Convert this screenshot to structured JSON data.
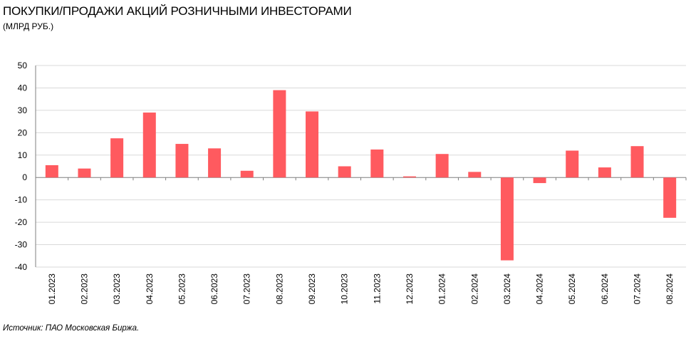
{
  "title": "ПОКУПКИ/ПРОДАЖИ АКЦИЙ РОЗНИЧНЫМИ ИНВЕСТОРАМИ",
  "subtitle": "(МЛРД РУБ.)",
  "source": "Источник: ПАО Московская Биржа.",
  "chart_data": {
    "type": "bar",
    "title": "ПОКУПКИ/ПРОДАЖИ АКЦИЙ РОЗНИЧНЫМИ ИНВЕСТОРАМИ",
    "subtitle": "(МЛРД РУБ.)",
    "xlabel": "",
    "ylabel": "",
    "ylim": [
      -40,
      50
    ],
    "yticks": [
      50,
      40,
      30,
      20,
      10,
      0,
      -10,
      -20,
      -30,
      -40
    ],
    "grid": true,
    "legend": "none",
    "bar_color": "#ff5a5f",
    "categories": [
      "01.2023",
      "02.2023",
      "03.2023",
      "04.2023",
      "05.2023",
      "06.2023",
      "07.2023",
      "08.2023",
      "09.2023",
      "10.2023",
      "11.2023",
      "12.2023",
      "01.2024",
      "02.2024",
      "03.2024",
      "04.2024",
      "05.2024",
      "06.2024",
      "07.2024",
      "08.2024"
    ],
    "values": [
      5.5,
      4,
      17.5,
      29,
      15,
      13,
      3,
      39,
      29.5,
      5,
      12.5,
      0.5,
      10.5,
      2.5,
      -37,
      -2.5,
      12,
      4.5,
      14,
      -18
    ]
  }
}
